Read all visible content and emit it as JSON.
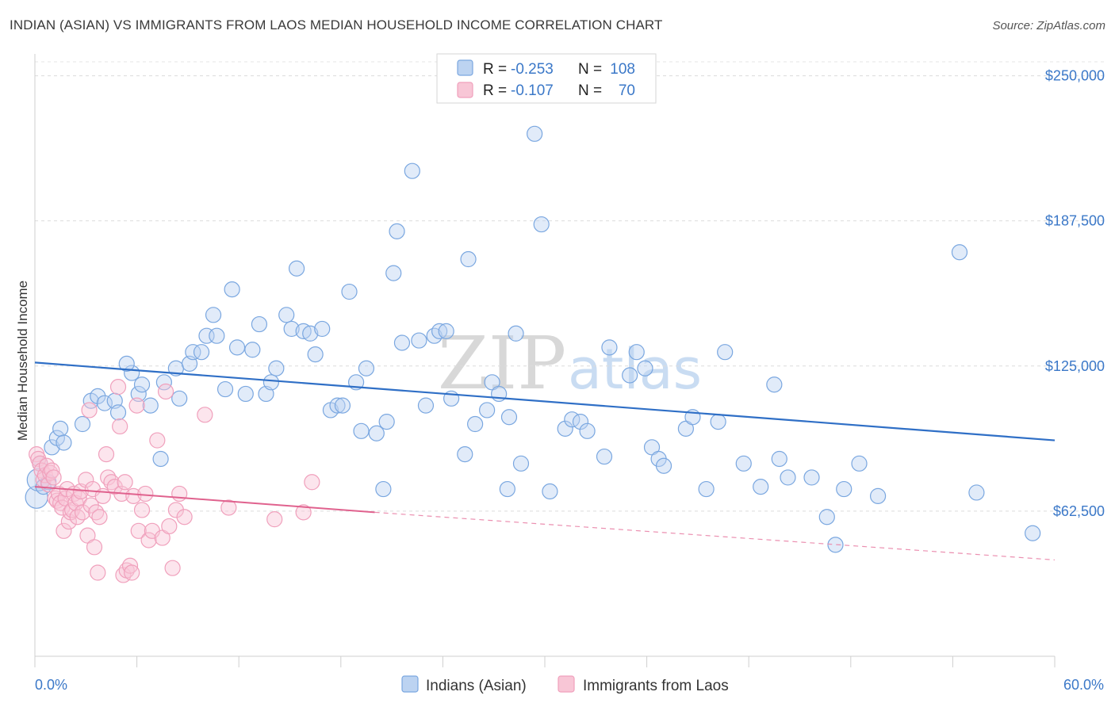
{
  "title": "INDIAN (ASIAN) VS IMMIGRANTS FROM LAOS MEDIAN HOUSEHOLD INCOME CORRELATION CHART",
  "source": "Source: ZipAtlas.com",
  "watermark": {
    "left": "ZIP",
    "right": "atlas"
  },
  "chart_data": {
    "type": "scatter",
    "xlabel": "",
    "ylabel": "Median Household Income",
    "xlim": [
      0,
      60
    ],
    "ylim": [
      0,
      256000
    ],
    "x_tick_labels": {
      "left": "0.0%",
      "right": "60.0%"
    },
    "y_ticks": [
      {
        "value": 62500,
        "label": "$62,500"
      },
      {
        "value": 125000,
        "label": "$125,000"
      },
      {
        "value": 187500,
        "label": "$187,500"
      },
      {
        "value": 250000,
        "label": "$250,000"
      }
    ],
    "grid": true,
    "legend_position": "top-center",
    "stats": [
      {
        "r_label": "R = ",
        "r": "-0.253",
        "n_label": "N = ",
        "n": "108"
      },
      {
        "r_label": "R = ",
        "r": "-0.107",
        "n_label": "N = ",
        "n": "70"
      }
    ],
    "series": [
      {
        "name": "Indians (Asian)",
        "color": "#7aa7e0",
        "trend": {
          "x0": 0,
          "y0": 126500,
          "x1": 60,
          "y1": 93000
        },
        "points": [
          [
            0.1,
            68500
          ],
          [
            0.2,
            76000
          ],
          [
            0.3,
            83000
          ],
          [
            0.5,
            73000
          ],
          [
            0.8,
            75000
          ],
          [
            1.0,
            90000
          ],
          [
            1.3,
            94000
          ],
          [
            1.5,
            98000
          ],
          [
            1.7,
            92000
          ],
          [
            2.8,
            100000
          ],
          [
            3.3,
            110000
          ],
          [
            3.7,
            112000
          ],
          [
            4.1,
            109000
          ],
          [
            4.7,
            110000
          ],
          [
            4.9,
            105000
          ],
          [
            5.7,
            122000
          ],
          [
            5.4,
            126000
          ],
          [
            6.1,
            113000
          ],
          [
            6.3,
            117000
          ],
          [
            6.8,
            108000
          ],
          [
            7.4,
            85000
          ],
          [
            7.6,
            118000
          ],
          [
            8.3,
            124000
          ],
          [
            8.5,
            111000
          ],
          [
            9.1,
            126000
          ],
          [
            9.3,
            131000
          ],
          [
            9.8,
            131000
          ],
          [
            10.1,
            138000
          ],
          [
            10.5,
            147000
          ],
          [
            10.7,
            138000
          ],
          [
            11.2,
            115000
          ],
          [
            11.6,
            158000
          ],
          [
            11.9,
            133000
          ],
          [
            12.4,
            113000
          ],
          [
            12.8,
            132000
          ],
          [
            13.2,
            143000
          ],
          [
            14.2,
            124000
          ],
          [
            13.6,
            113000
          ],
          [
            13.9,
            118000
          ],
          [
            14.8,
            147000
          ],
          [
            15.1,
            141000
          ],
          [
            15.4,
            167000
          ],
          [
            15.8,
            140000
          ],
          [
            16.2,
            139000
          ],
          [
            16.5,
            130000
          ],
          [
            16.9,
            141000
          ],
          [
            17.4,
            106000
          ],
          [
            17.8,
            108000
          ],
          [
            18.1,
            108000
          ],
          [
            18.5,
            157000
          ],
          [
            18.9,
            118000
          ],
          [
            19.2,
            97000
          ],
          [
            19.5,
            124000
          ],
          [
            20.1,
            96000
          ],
          [
            20.5,
            72000
          ],
          [
            20.7,
            101000
          ],
          [
            21.1,
            165000
          ],
          [
            21.3,
            183000
          ],
          [
            21.6,
            135000
          ],
          [
            22.2,
            209000
          ],
          [
            22.6,
            136000
          ],
          [
            23.0,
            108000
          ],
          [
            23.5,
            138000
          ],
          [
            23.8,
            140000
          ],
          [
            24.2,
            140000
          ],
          [
            24.5,
            111000
          ],
          [
            25.3,
            87000
          ],
          [
            25.5,
            171000
          ],
          [
            25.9,
            100000
          ],
          [
            26.6,
            106000
          ],
          [
            26.9,
            118000
          ],
          [
            27.3,
            113000
          ],
          [
            27.8,
            72000
          ],
          [
            27.9,
            103000
          ],
          [
            28.3,
            139000
          ],
          [
            28.6,
            83000
          ],
          [
            29.4,
            225000
          ],
          [
            29.8,
            186000
          ],
          [
            30.3,
            71000
          ],
          [
            31.2,
            98000
          ],
          [
            31.6,
            102000
          ],
          [
            32.1,
            101000
          ],
          [
            32.5,
            97000
          ],
          [
            33.5,
            86000
          ],
          [
            33.8,
            133000
          ],
          [
            35.0,
            121000
          ],
          [
            35.4,
            131000
          ],
          [
            35.9,
            124000
          ],
          [
            36.3,
            90000
          ],
          [
            36.7,
            85000
          ],
          [
            37.0,
            82000
          ],
          [
            38.3,
            98000
          ],
          [
            38.7,
            103000
          ],
          [
            39.5,
            72000
          ],
          [
            40.2,
            101000
          ],
          [
            40.6,
            131000
          ],
          [
            41.7,
            83000
          ],
          [
            42.7,
            73000
          ],
          [
            43.5,
            117000
          ],
          [
            43.8,
            85000
          ],
          [
            44.3,
            77000
          ],
          [
            45.7,
            77000
          ],
          [
            46.6,
            60000
          ],
          [
            47.1,
            48000
          ],
          [
            47.6,
            72000
          ],
          [
            48.5,
            83000
          ],
          [
            49.6,
            69000
          ],
          [
            54.4,
            174000
          ],
          [
            55.4,
            70500
          ],
          [
            58.7,
            53000
          ]
        ]
      },
      {
        "name": "Immigrants from Laos",
        "color": "#f0a0bc",
        "trend": {
          "x0": 0,
          "y0": 73000,
          "x1": 20,
          "y1": 62000,
          "dash_x1": 60,
          "dash_y1": 41500
        },
        "points": [
          [
            0.1,
            87000
          ],
          [
            0.2,
            85000
          ],
          [
            0.3,
            83000
          ],
          [
            0.4,
            80000
          ],
          [
            0.5,
            76000
          ],
          [
            0.6,
            78000
          ],
          [
            0.7,
            82000
          ],
          [
            0.8,
            74000
          ],
          [
            0.9,
            79000
          ],
          [
            1.0,
            80000
          ],
          [
            1.1,
            77000
          ],
          [
            1.2,
            68000
          ],
          [
            1.3,
            67000
          ],
          [
            1.4,
            70000
          ],
          [
            1.5,
            66000
          ],
          [
            1.6,
            64000
          ],
          [
            1.7,
            54000
          ],
          [
            1.8,
            68000
          ],
          [
            1.9,
            72000
          ],
          [
            2.0,
            58000
          ],
          [
            2.1,
            62000
          ],
          [
            2.2,
            63000
          ],
          [
            2.3,
            70000
          ],
          [
            2.4,
            66000
          ],
          [
            2.5,
            60000
          ],
          [
            2.6,
            68000
          ],
          [
            2.7,
            71000
          ],
          [
            2.8,
            62000
          ],
          [
            3.0,
            76000
          ],
          [
            3.1,
            52000
          ],
          [
            3.2,
            106000
          ],
          [
            3.3,
            65000
          ],
          [
            3.4,
            72000
          ],
          [
            3.5,
            47000
          ],
          [
            3.6,
            62000
          ],
          [
            3.7,
            36000
          ],
          [
            3.8,
            60000
          ],
          [
            4.0,
            69000
          ],
          [
            4.2,
            87000
          ],
          [
            4.3,
            77000
          ],
          [
            4.5,
            75000
          ],
          [
            4.7,
            73000
          ],
          [
            4.9,
            116000
          ],
          [
            5.0,
            99000
          ],
          [
            5.1,
            70000
          ],
          [
            5.2,
            35000
          ],
          [
            5.3,
            75000
          ],
          [
            5.4,
            37000
          ],
          [
            5.6,
            39000
          ],
          [
            5.7,
            36000
          ],
          [
            5.8,
            69000
          ],
          [
            6.0,
            108000
          ],
          [
            6.1,
            54000
          ],
          [
            6.3,
            63000
          ],
          [
            6.5,
            70000
          ],
          [
            6.7,
            50000
          ],
          [
            6.9,
            54000
          ],
          [
            7.2,
            93000
          ],
          [
            7.5,
            51000
          ],
          [
            7.7,
            114000
          ],
          [
            7.9,
            56000
          ],
          [
            8.1,
            38000
          ],
          [
            8.3,
            63000
          ],
          [
            8.5,
            70000
          ],
          [
            8.8,
            60000
          ],
          [
            10.0,
            104000
          ],
          [
            11.4,
            64000
          ],
          [
            14.1,
            59000
          ],
          [
            15.8,
            62000
          ],
          [
            16.3,
            75000
          ]
        ]
      }
    ]
  }
}
